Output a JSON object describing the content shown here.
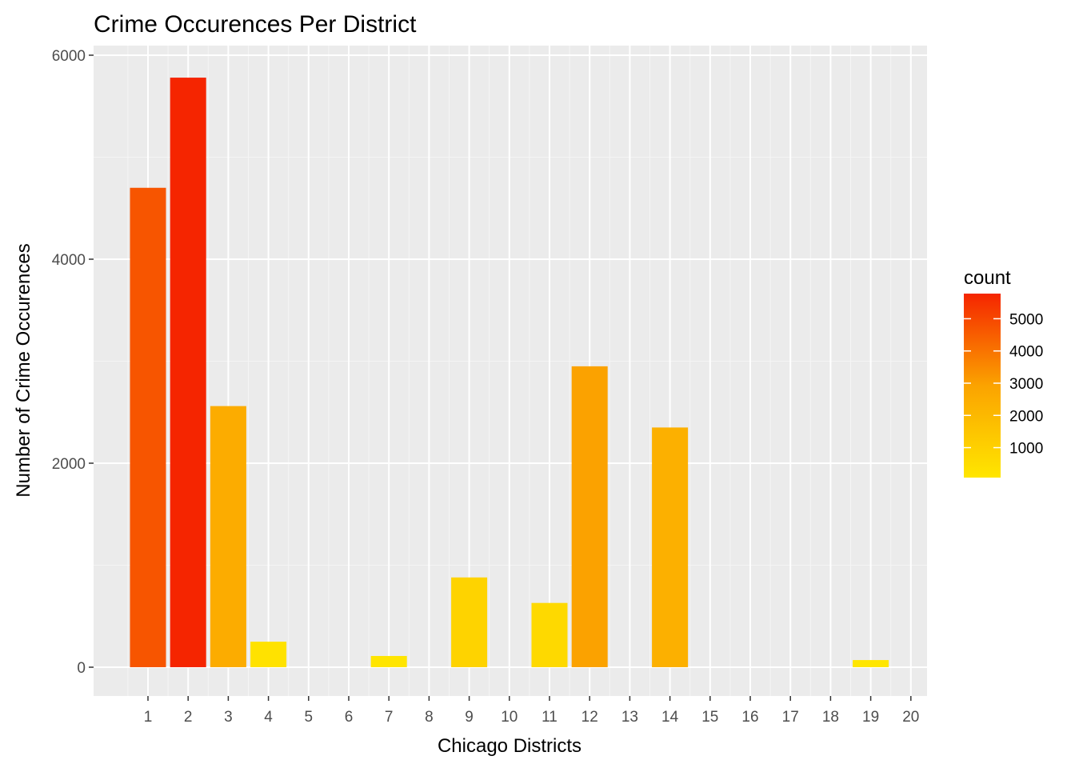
{
  "chart_data": {
    "type": "bar",
    "title": "Crime Occurences Per District",
    "xlabel": "Chicago Districts",
    "ylabel": "Number of Crime Occurences",
    "x_ticks": [
      "1",
      "2",
      "3",
      "4",
      "5",
      "6",
      "7",
      "8",
      "9",
      "10",
      "11",
      "12",
      "13",
      "14",
      "15",
      "16",
      "17",
      "18",
      "19",
      "20"
    ],
    "y_ticks": [
      0,
      2000,
      4000,
      6000
    ],
    "ylim": [
      -280,
      6000
    ],
    "grid": true,
    "panel_background": "#ebebeb",
    "bars": [
      {
        "x": 1,
        "value": 4700
      },
      {
        "x": 2,
        "value": 5780
      },
      {
        "x": 3,
        "value": 2560
      },
      {
        "x": 4,
        "value": 250
      },
      {
        "x": 7,
        "value": 110
      },
      {
        "x": 9,
        "value": 880
      },
      {
        "x": 11,
        "value": 630
      },
      {
        "x": 12,
        "value": 2950
      },
      {
        "x": 14,
        "value": 2350
      },
      {
        "x": 19,
        "value": 70
      }
    ],
    "legend": {
      "title": "count",
      "position": "right",
      "breaks": [
        1000,
        2000,
        3000,
        4000,
        5000
      ],
      "range": [
        70,
        5780
      ],
      "low_color": "#ffe600",
      "high_color": "#f52500"
    }
  }
}
